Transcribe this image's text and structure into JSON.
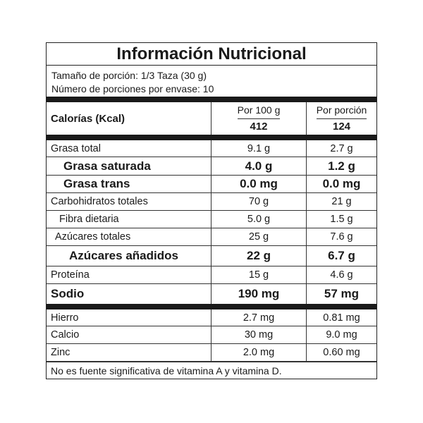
{
  "title": "Información Nutricional",
  "serving_size": "Tamaño de porción: 1/3 Taza (30 g)",
  "servings_per_container": "Número de porciones por envase: 10",
  "calories": {
    "label": "Calorías (Kcal)",
    "col1_header": "Por 100 g",
    "col2_header": "Por porción",
    "per100": "412",
    "perserving": "124"
  },
  "nutrients": [
    {
      "name": "Grasa total",
      "per100": "9.1 g",
      "perserving": "2.7 g"
    },
    {
      "name": "Grasa saturada",
      "per100": "4.0 g",
      "perserving": "1.2 g"
    },
    {
      "name": "Grasa trans",
      "per100": "0.0 mg",
      "perserving": "0.0 mg"
    },
    {
      "name": "Carbohidratos totales",
      "per100": "70 g",
      "perserving": "21 g"
    },
    {
      "name": "Fibra dietaria",
      "per100": "5.0 g",
      "perserving": "1.5 g"
    },
    {
      "name": "Azúcares totales",
      "per100": "25 g",
      "perserving": "7.6 g"
    },
    {
      "name": "Azúcares añadidos",
      "per100": "22 g",
      "perserving": "6.7 g"
    },
    {
      "name": "Proteína",
      "per100": "15 g",
      "perserving": "4.6 g"
    },
    {
      "name": "Sodio",
      "per100": "190 mg",
      "perserving": "57 mg"
    }
  ],
  "minerals": [
    {
      "name": "Hierro",
      "per100": "2.7 mg",
      "perserving": "0.81 mg"
    },
    {
      "name": "Calcio",
      "per100": "30 mg",
      "perserving": "9.0 mg"
    },
    {
      "name": "Zinc",
      "per100": "2.0 mg",
      "perserving": "0.60 mg"
    }
  ],
  "footnote": "No es fuente significativa de vitamina A y vitamina D."
}
